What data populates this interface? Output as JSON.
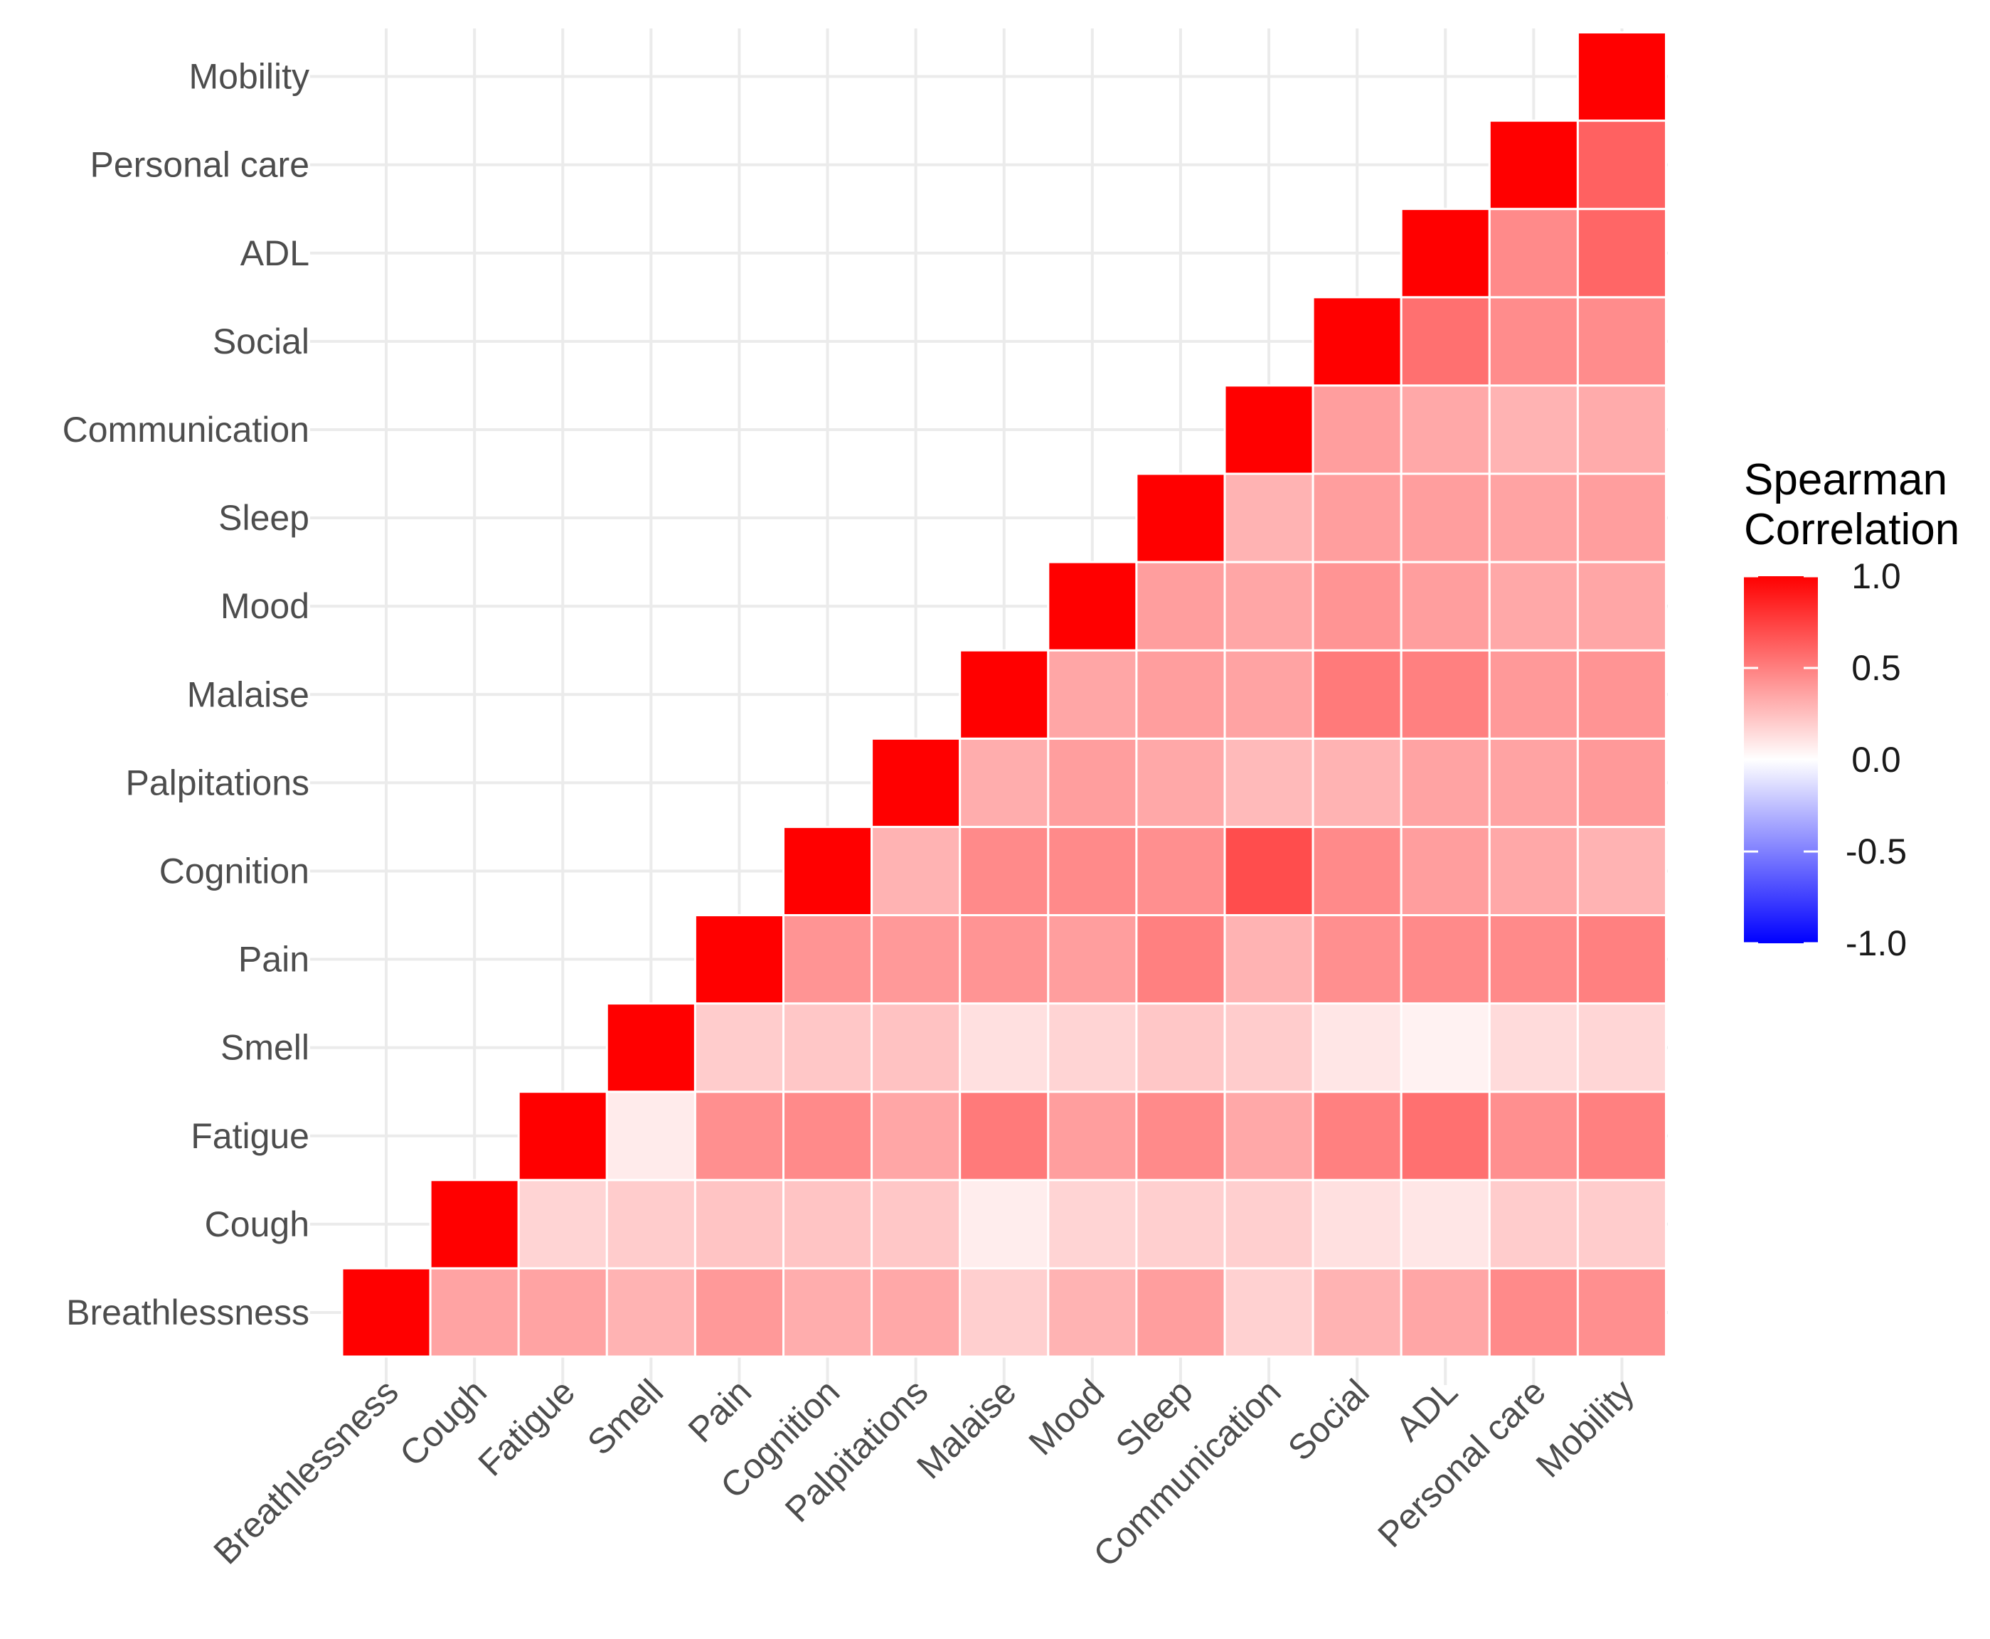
{
  "chart_data": {
    "type": "heatmap",
    "title": "",
    "xlabel": "",
    "ylabel": "",
    "variables": [
      "Breathlessness",
      "Cough",
      "Fatigue",
      "Smell",
      "Pain",
      "Cognition",
      "Palpitations",
      "Malaise",
      "Mood",
      "Sleep",
      "Communication",
      "Social",
      "ADL",
      "Personal care",
      "Mobility"
    ],
    "matrix_lower_triangle": [
      [
        1.0
      ],
      [
        0.36,
        1.0
      ],
      [
        0.36,
        0.17,
        1.0
      ],
      [
        0.3,
        0.2,
        0.08,
        1.0
      ],
      [
        0.4,
        0.23,
        0.44,
        0.2,
        1.0
      ],
      [
        0.32,
        0.23,
        0.46,
        0.22,
        0.42,
        1.0
      ],
      [
        0.34,
        0.22,
        0.35,
        0.24,
        0.4,
        0.3,
        1.0
      ],
      [
        0.19,
        0.07,
        0.52,
        0.12,
        0.42,
        0.46,
        0.32,
        1.0
      ],
      [
        0.3,
        0.17,
        0.38,
        0.17,
        0.38,
        0.46,
        0.38,
        0.35,
        1.0
      ],
      [
        0.38,
        0.19,
        0.46,
        0.22,
        0.5,
        0.44,
        0.34,
        0.38,
        0.38,
        1.0
      ],
      [
        0.18,
        0.19,
        0.34,
        0.2,
        0.3,
        0.7,
        0.27,
        0.36,
        0.35,
        0.3,
        1.0
      ],
      [
        0.3,
        0.12,
        0.5,
        0.1,
        0.44,
        0.46,
        0.3,
        0.52,
        0.42,
        0.38,
        0.38,
        1.0
      ],
      [
        0.35,
        0.1,
        0.56,
        0.05,
        0.46,
        0.38,
        0.36,
        0.5,
        0.38,
        0.38,
        0.34,
        0.56,
        1.0
      ],
      [
        0.46,
        0.2,
        0.44,
        0.14,
        0.46,
        0.34,
        0.36,
        0.4,
        0.34,
        0.36,
        0.3,
        0.45,
        0.46,
        1.0
      ],
      [
        0.44,
        0.2,
        0.5,
        0.16,
        0.5,
        0.3,
        0.4,
        0.42,
        0.35,
        0.38,
        0.33,
        0.45,
        0.6,
        0.62,
        1.0
      ]
    ],
    "legend": {
      "title_line1": "Spearman",
      "title_line2": "Correlation",
      "ticks": [
        "1.0",
        "0.5",
        "0.0",
        "-0.5",
        "-1.0"
      ],
      "tick_values": [
        1.0,
        0.5,
        0.0,
        -0.5,
        -1.0
      ],
      "range": [
        -1,
        1
      ],
      "colors": {
        "low": "#0000ff",
        "mid": "#ffffff",
        "high": "#ff0000"
      },
      "position": "right"
    },
    "grid": true
  }
}
